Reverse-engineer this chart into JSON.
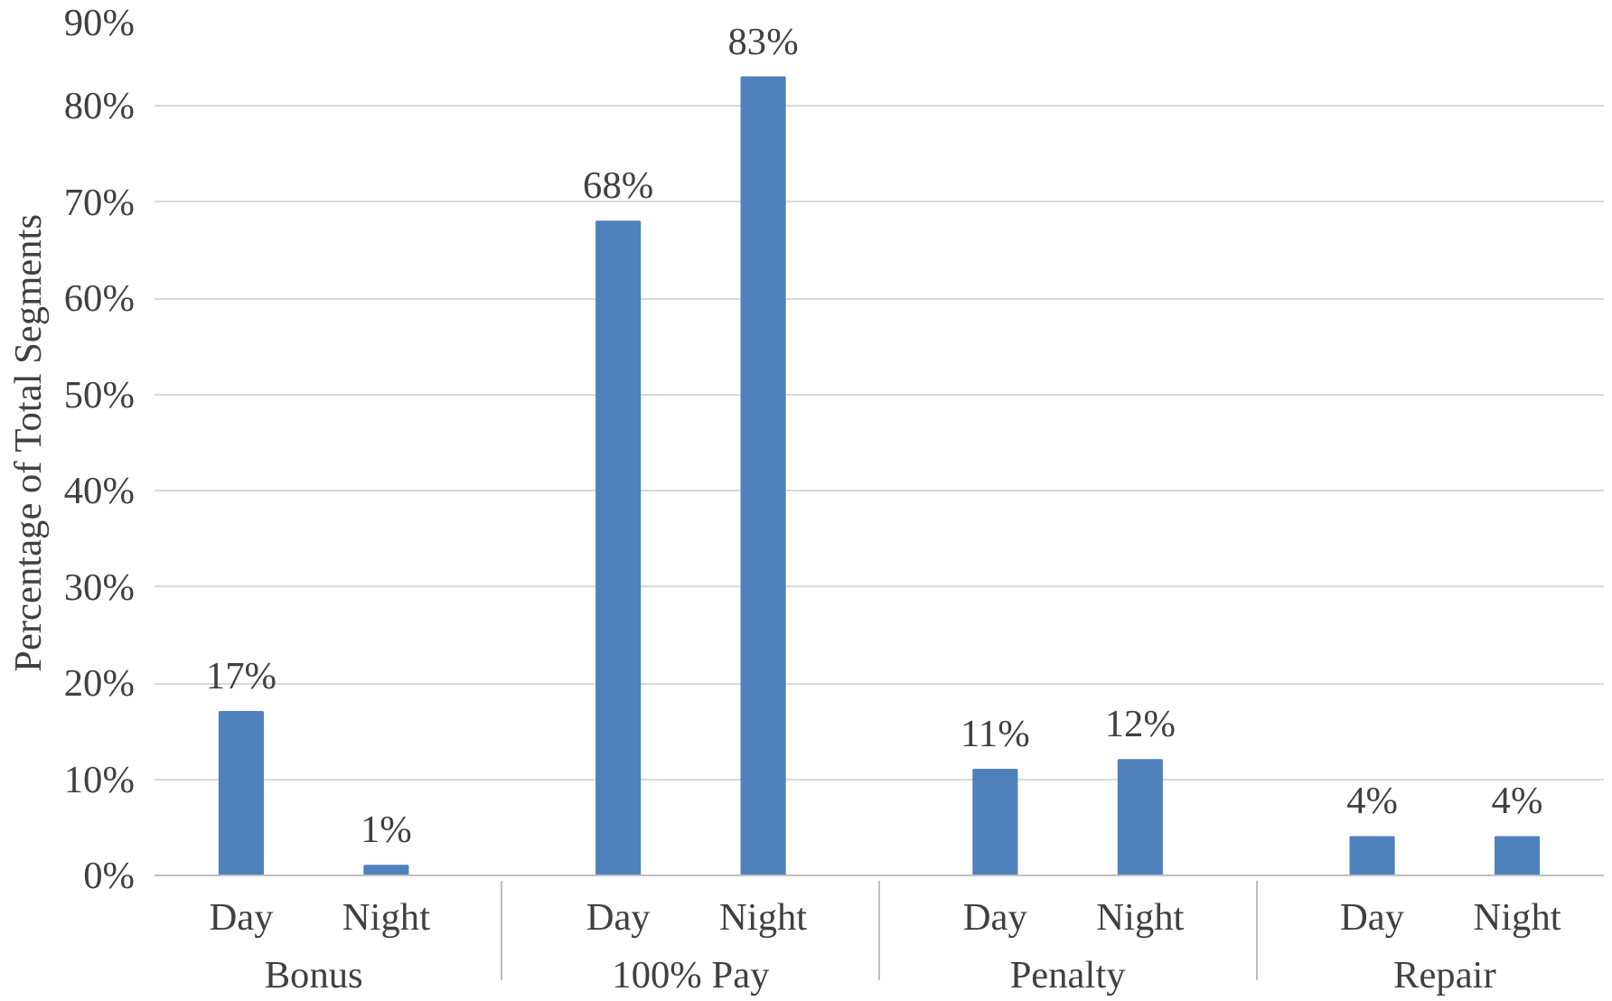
{
  "chart_data": {
    "type": "bar",
    "ylabel": "Percentage of Total Segments",
    "categories": [
      "Day",
      "Night",
      "Day",
      "Night",
      "Day",
      "Night",
      "Day",
      "Night"
    ],
    "annotations": [
      "Bonus",
      "100% Pay",
      "Penalty",
      "Repair"
    ],
    "values": [
      17,
      1,
      68,
      83,
      11,
      12,
      4,
      4
    ],
    "color": "#4f81bd",
    "value_labels": [
      "17%",
      "1%",
      "68%",
      "83%",
      "11%",
      "12%",
      "4%",
      "4%"
    ],
    "ylim": [
      0,
      90
    ],
    "yticks": [
      {
        "value": 0,
        "label": "0%"
      },
      {
        "value": 10,
        "label": "10%"
      },
      {
        "value": 20,
        "label": "20%"
      },
      {
        "value": 30,
        "label": "30%"
      },
      {
        "value": 40,
        "label": "40%"
      },
      {
        "value": 50,
        "label": "50%"
      },
      {
        "value": 60,
        "label": "60%"
      },
      {
        "value": 70,
        "label": "70%"
      },
      {
        "value": 80,
        "label": "80%"
      },
      {
        "value": 90,
        "label": "90%"
      }
    ],
    "grid": "y"
  }
}
